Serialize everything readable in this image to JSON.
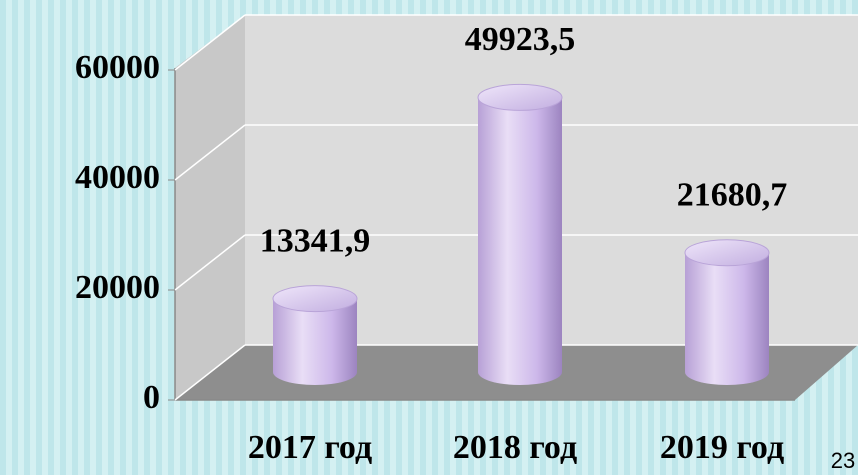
{
  "chart_data": {
    "type": "bar",
    "categories": [
      "2017 год",
      "2018 год",
      "2019 год"
    ],
    "values": [
      13341.9,
      49923.5,
      21680.7
    ],
    "value_labels": [
      "13341,9",
      "49923,5",
      "21680,7"
    ],
    "color": "#c9b3e6",
    "ylim": [
      0,
      60000
    ],
    "yticks": [
      0,
      20000,
      40000,
      60000
    ],
    "grid": true
  },
  "slide_number": "23"
}
